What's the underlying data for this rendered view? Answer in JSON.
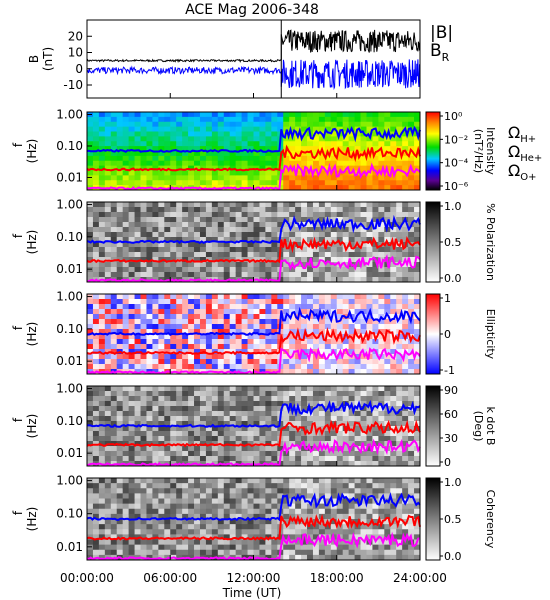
{
  "title": "ACE Mag 2006-348",
  "xaxis": {
    "label": "Time (UT)",
    "ticks": [
      "00:00:00",
      "06:00:00",
      "12:00:00",
      "18:00:00",
      "24:00:00"
    ],
    "tick_hours": [
      0,
      6,
      12,
      18,
      24
    ]
  },
  "legend_top": {
    "b_total": "|B|",
    "b_r": "B",
    "b_r_sub": "R"
  },
  "legend_cyclotron": [
    {
      "symbol": "Ω",
      "sub": "H+",
      "color": "#0000ff"
    },
    {
      "symbol": "Ω",
      "sub": "He+",
      "color": "#ff0000"
    },
    {
      "symbol": "Ω",
      "sub": "O+",
      "color": "#ff00ff"
    }
  ],
  "colors": {
    "b_total": "#000000",
    "b_r": "#0000ff",
    "h_plus": "#0000ff",
    "he_plus": "#ff0000",
    "o_plus": "#ff00ff"
  },
  "chart_data": [
    {
      "type": "line",
      "ylabel": "B",
      "yunit": "(nT)",
      "ylim": [
        -18,
        30
      ],
      "yticks": [
        -10,
        0,
        10,
        20
      ],
      "shock_time_hours": 14.0,
      "x_range_hours": [
        0,
        24
      ],
      "series": [
        {
          "name": "|B|",
          "segments": [
            {
              "x": [
                0,
                14.0
              ],
              "mean": 5,
              "noise": 0.6
            },
            {
              "x": [
                14.0,
                24
              ],
              "mean": 17,
              "noise": 7
            }
          ]
        },
        {
          "name": "B",
          "segments": [
            {
              "x": [
                0,
                14.0
              ],
              "mean": -1,
              "noise": 2
            },
            {
              "x": [
                14.0,
                24
              ],
              "mean": -3,
              "noise": 9
            }
          ]
        }
      ]
    },
    {
      "type": "heatmap",
      "ylabel": "f",
      "yunit": "(Hz)",
      "ytick_labels": [
        "1.00",
        "0.10",
        "0.01"
      ],
      "ylim_hz": [
        0.004,
        1.2
      ],
      "colorbar": {
        "title": "Intensity",
        "unit": "(nT²/Hz)",
        "scale": "spectral",
        "labels": [
          "10⁰",
          "10⁻²",
          "10⁻⁴",
          "10⁻⁶"
        ]
      }
    },
    {
      "type": "heatmap",
      "ylabel": "f",
      "yunit": "(Hz)",
      "ytick_labels": [
        "1.00",
        "0.10",
        "0.01"
      ],
      "ylim_hz": [
        0.004,
        1.2
      ],
      "colorbar": {
        "title": "% Polarization",
        "scale": "gray",
        "labels": [
          "1.0",
          "0.5",
          "0.0"
        ]
      }
    },
    {
      "type": "heatmap",
      "ylabel": "f",
      "yunit": "(Hz)",
      "ytick_labels": [
        "1.00",
        "0.10",
        "0.01"
      ],
      "ylim_hz": [
        0.004,
        1.2
      ],
      "colorbar": {
        "title": "Ellipticity",
        "scale": "bwr",
        "labels": [
          "1",
          "0",
          "-1"
        ]
      }
    },
    {
      "type": "heatmap",
      "ylabel": "f",
      "yunit": "(Hz)",
      "ytick_labels": [
        "1.00",
        "0.10",
        "0.01"
      ],
      "ylim_hz": [
        0.004,
        1.2
      ],
      "colorbar": {
        "title": "k dot B",
        "unit": "(Deg)",
        "scale": "gray",
        "labels": [
          "90",
          "60",
          "30",
          "0"
        ]
      }
    },
    {
      "type": "heatmap",
      "ylabel": "f",
      "yunit": "(Hz)",
      "ytick_labels": [
        "1.00",
        "0.10",
        "0.01"
      ],
      "ylim_hz": [
        0.004,
        1.2
      ],
      "colorbar": {
        "title": "Coherency",
        "scale": "gray",
        "labels": [
          "1.0",
          "0.5",
          "0.0"
        ]
      }
    }
  ],
  "cyclotron_lines_hz": {
    "before_shock": {
      "H+": 0.07,
      "He+": 0.018,
      "O+": 0.0045
    },
    "after_shock": {
      "H+": 0.25,
      "He+": 0.06,
      "O+": 0.016
    }
  }
}
